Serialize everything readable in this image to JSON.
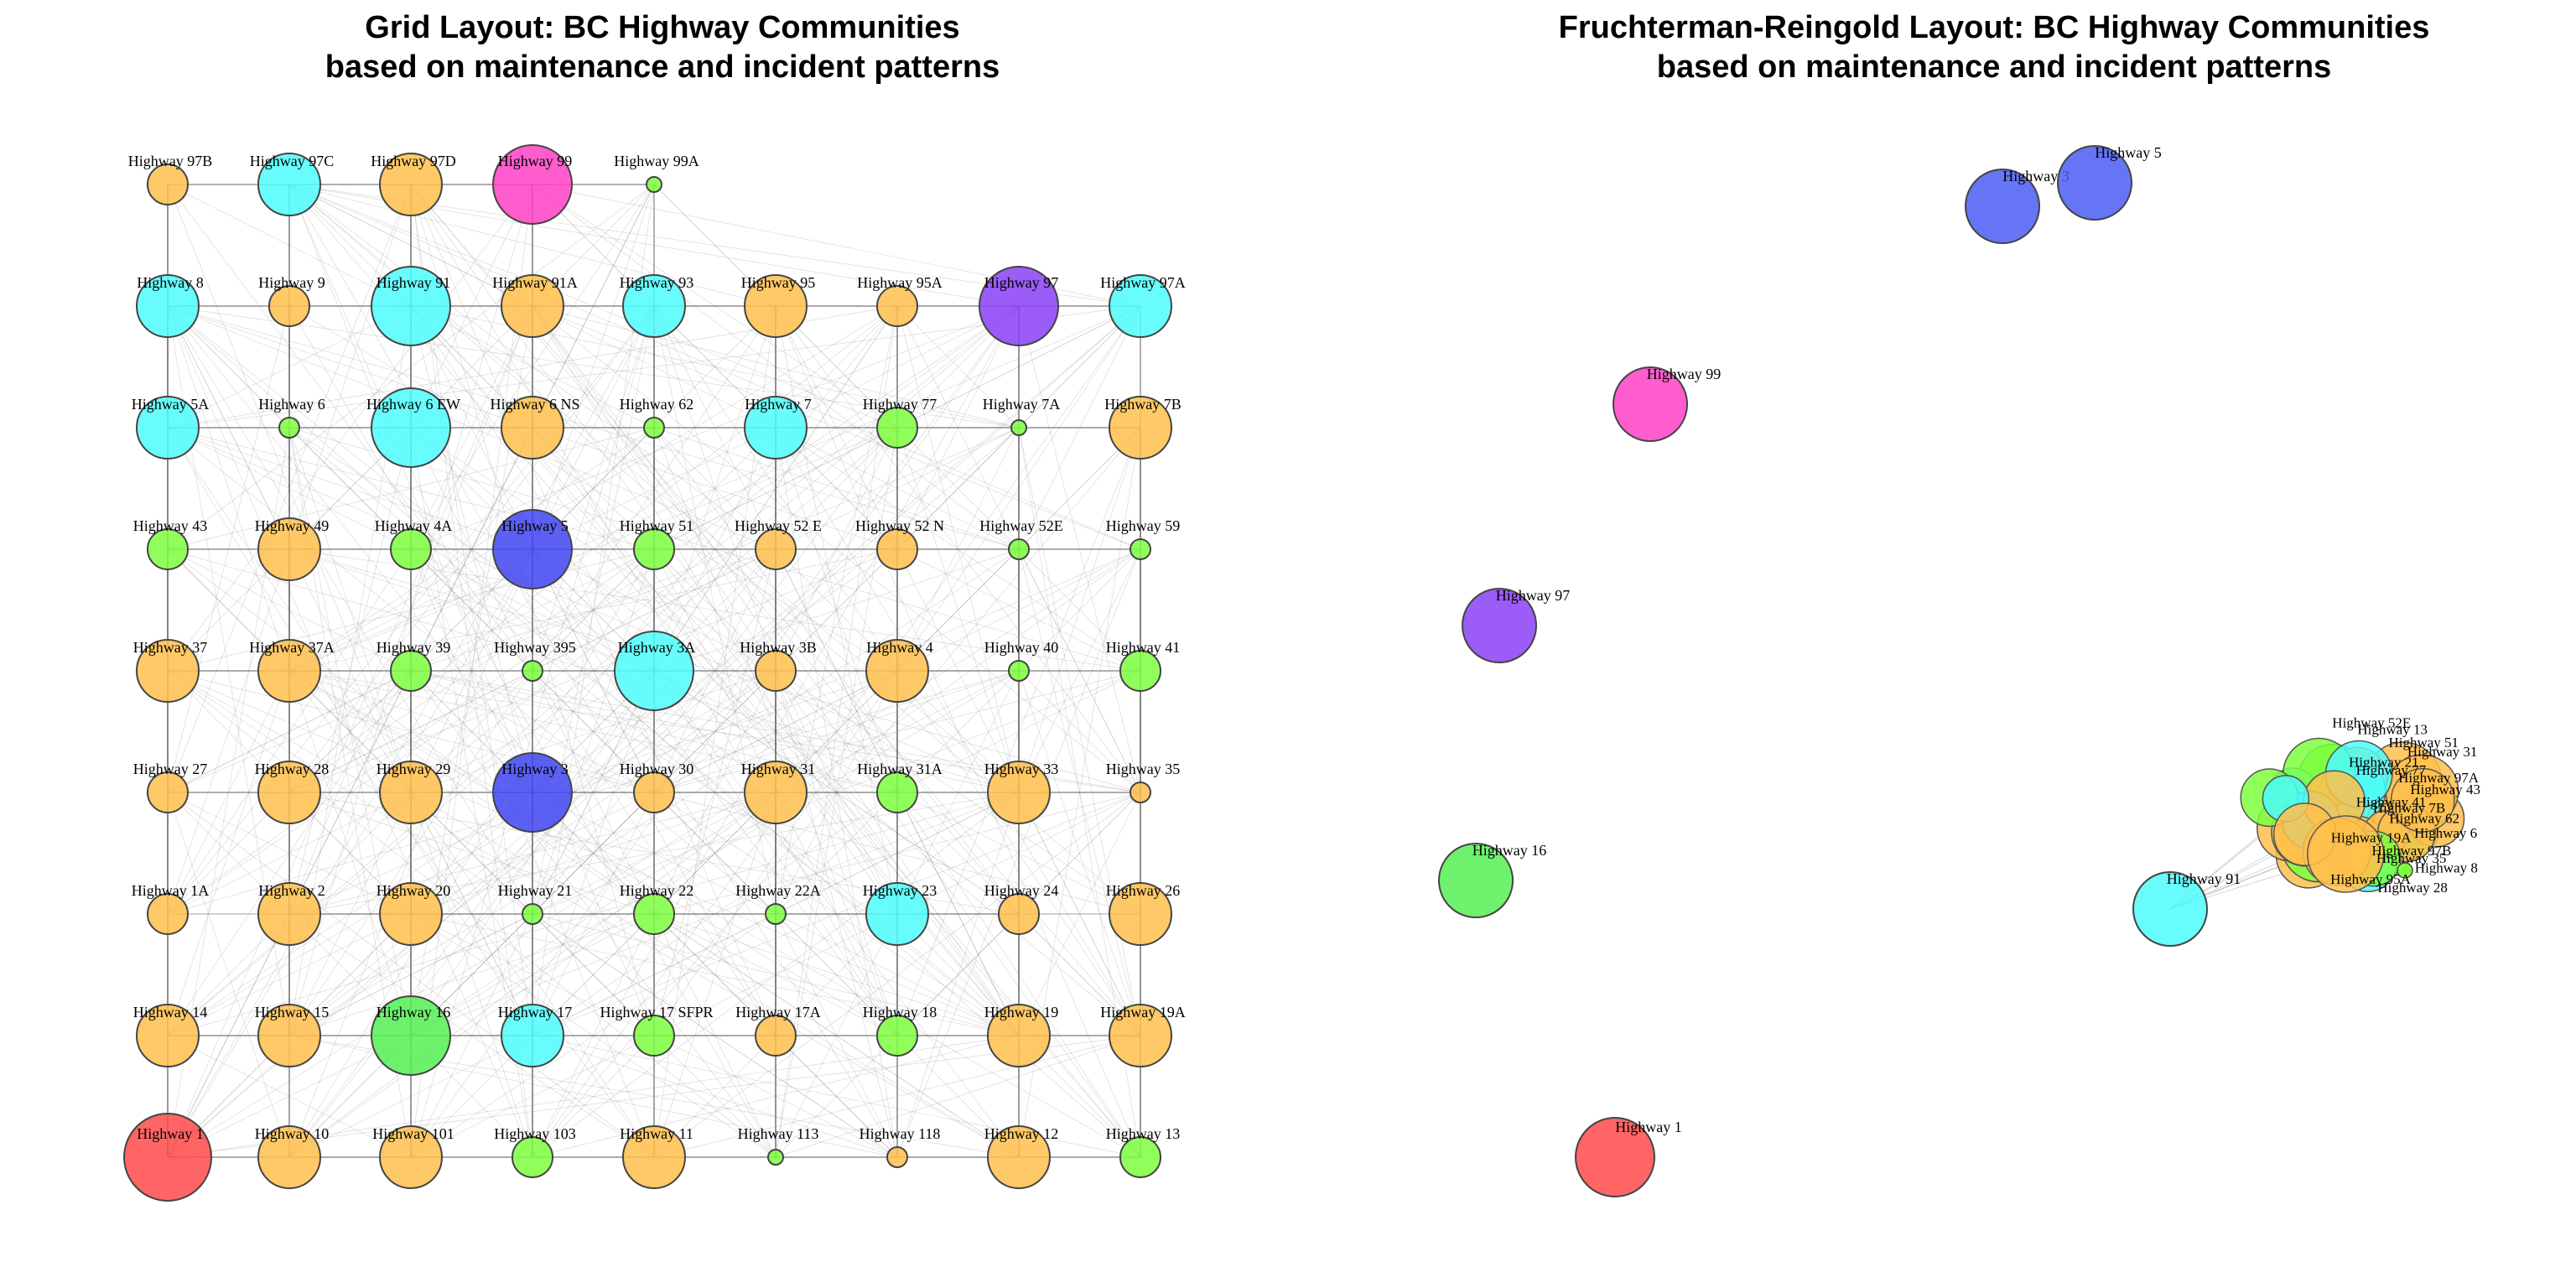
{
  "panels": [
    {
      "id": "grid",
      "title_line1": "Grid Layout: BC Highway Communities",
      "title_line2": "based on maintenance and incident patterns"
    },
    {
      "id": "fr",
      "title_line1": "Fruchterman-Reingold Layout: BC Highway Communities",
      "title_line2": "based on maintenance and incident patterns"
    }
  ],
  "community_colors": {
    "orange": "#ffc04c",
    "cyan": "#4dfcfc",
    "green": "#7dff3f",
    "lightgreen": "#55f055",
    "blue": "#3f45f2",
    "violet": "#8a3ff7",
    "magenta": "#ff3fc4",
    "red": "#ff4a4a",
    "blue2": "#4a5df5"
  },
  "grid_nodes": [
    [
      "Highway 97B",
      "orange",
      "m"
    ],
    [
      "Highway 97C",
      "cyan",
      "l"
    ],
    [
      "Highway 97D",
      "orange",
      "l"
    ],
    [
      "Highway 99",
      "magenta",
      "xl"
    ],
    [
      "Highway 99A",
      "green",
      "xs"
    ],
    [
      "Highway 8",
      "cyan",
      "l"
    ],
    [
      "Highway 9",
      "orange",
      "m"
    ],
    [
      "Highway 91",
      "cyan",
      "xl"
    ],
    [
      "Highway 91A",
      "orange",
      "l"
    ],
    [
      "Highway 93",
      "cyan",
      "l"
    ],
    [
      "Highway 95",
      "orange",
      "l"
    ],
    [
      "Highway 95A",
      "orange",
      "m"
    ],
    [
      "Highway 97",
      "violet",
      "xl"
    ],
    [
      "Highway 97A",
      "cyan",
      "l"
    ],
    [
      "Highway 5A",
      "cyan",
      "l"
    ],
    [
      "Highway 6",
      "green",
      "s"
    ],
    [
      "Highway 6 EW",
      "cyan",
      "xl"
    ],
    [
      "Highway 6 NS",
      "orange",
      "l"
    ],
    [
      "Highway 62",
      "green",
      "s"
    ],
    [
      "Highway 7",
      "cyan",
      "l"
    ],
    [
      "Highway 77",
      "green",
      "m"
    ],
    [
      "Highway 7A",
      "green",
      "xs"
    ],
    [
      "Highway 7B",
      "orange",
      "l"
    ],
    [
      "Highway 43",
      "green",
      "m"
    ],
    [
      "Highway 49",
      "orange",
      "l"
    ],
    [
      "Highway 4A",
      "green",
      "m"
    ],
    [
      "Highway 5",
      "blue",
      "xl"
    ],
    [
      "Highway 51",
      "green",
      "m"
    ],
    [
      "Highway 52 E",
      "orange",
      "m"
    ],
    [
      "Highway 52 N",
      "orange",
      "m"
    ],
    [
      "Highway 52E",
      "green",
      "s"
    ],
    [
      "Highway 59",
      "green",
      "s"
    ],
    [
      "Highway 37",
      "orange",
      "l"
    ],
    [
      "Highway 37A",
      "orange",
      "l"
    ],
    [
      "Highway 39",
      "green",
      "m"
    ],
    [
      "Highway 395",
      "green",
      "s"
    ],
    [
      "Highway 3A",
      "cyan",
      "xl"
    ],
    [
      "Highway 3B",
      "orange",
      "m"
    ],
    [
      "Highway 4",
      "orange",
      "l"
    ],
    [
      "Highway 40",
      "green",
      "s"
    ],
    [
      "Highway 41",
      "green",
      "m"
    ],
    [
      "Highway 27",
      "orange",
      "m"
    ],
    [
      "Highway 28",
      "orange",
      "l"
    ],
    [
      "Highway 29",
      "orange",
      "l"
    ],
    [
      "Highway 3",
      "blue",
      "xl"
    ],
    [
      "Highway 30",
      "orange",
      "m"
    ],
    [
      "Highway 31",
      "orange",
      "l"
    ],
    [
      "Highway 31A",
      "green",
      "m"
    ],
    [
      "Highway 33",
      "orange",
      "l"
    ],
    [
      "Highway 35",
      "orange",
      "s"
    ],
    [
      "Highway 1A",
      "orange",
      "m"
    ],
    [
      "Highway 2",
      "orange",
      "l"
    ],
    [
      "Highway 20",
      "orange",
      "l"
    ],
    [
      "Highway 21",
      "green",
      "s"
    ],
    [
      "Highway 22",
      "green",
      "m"
    ],
    [
      "Highway 22A",
      "green",
      "s"
    ],
    [
      "Highway 23",
      "cyan",
      "l"
    ],
    [
      "Highway 24",
      "orange",
      "m"
    ],
    [
      "Highway 26",
      "orange",
      "l"
    ],
    [
      "Highway 14",
      "orange",
      "l"
    ],
    [
      "Highway 15",
      "orange",
      "l"
    ],
    [
      "Highway 16",
      "lightgreen",
      "xl"
    ],
    [
      "Highway 17",
      "cyan",
      "l"
    ],
    [
      "Highway 17 SFPR",
      "green",
      "m"
    ],
    [
      "Highway 17A",
      "orange",
      "m"
    ],
    [
      "Highway 18",
      "green",
      "m"
    ],
    [
      "Highway 19",
      "orange",
      "l"
    ],
    [
      "Highway 19A",
      "orange",
      "l"
    ],
    [
      "Highway 1",
      "red",
      "xxl"
    ],
    [
      "Highway 10",
      "orange",
      "l"
    ],
    [
      "Highway 101",
      "orange",
      "l"
    ],
    [
      "Highway 103",
      "green",
      "m"
    ],
    [
      "Highway 11",
      "orange",
      "l"
    ],
    [
      "Highway 113",
      "green",
      "xs"
    ],
    [
      "Highway 118",
      "orange",
      "s"
    ],
    [
      "Highway 12",
      "orange",
      "l"
    ],
    [
      "Highway 13",
      "green",
      "m"
    ]
  ],
  "fr_outliers": [
    [
      "Highway 3",
      "blue2",
      "l"
    ],
    [
      "Highway 5",
      "blue2",
      "l"
    ],
    [
      "Highway 99",
      "magenta",
      "l"
    ],
    [
      "Highway 97",
      "violet",
      "l"
    ],
    [
      "Highway 16",
      "lightgreen",
      "l"
    ],
    [
      "Highway 1",
      "red",
      "xl"
    ],
    [
      "Highway 91",
      "cyan",
      "l"
    ]
  ],
  "fr_cluster_labels": [
    "Highway 52E",
    "Highway 13",
    "Highway 51",
    "Highway 31",
    "Highway 21",
    "Highway 77",
    "Highway 97A",
    "Highway 43",
    "Highway 41",
    "Highway 7B",
    "Highway 62",
    "Highway 6",
    "Highway 19A",
    "Highway 97B",
    "Highway 35",
    "Highway 8",
    "Highway 95A",
    "Highway 28"
  ]
}
